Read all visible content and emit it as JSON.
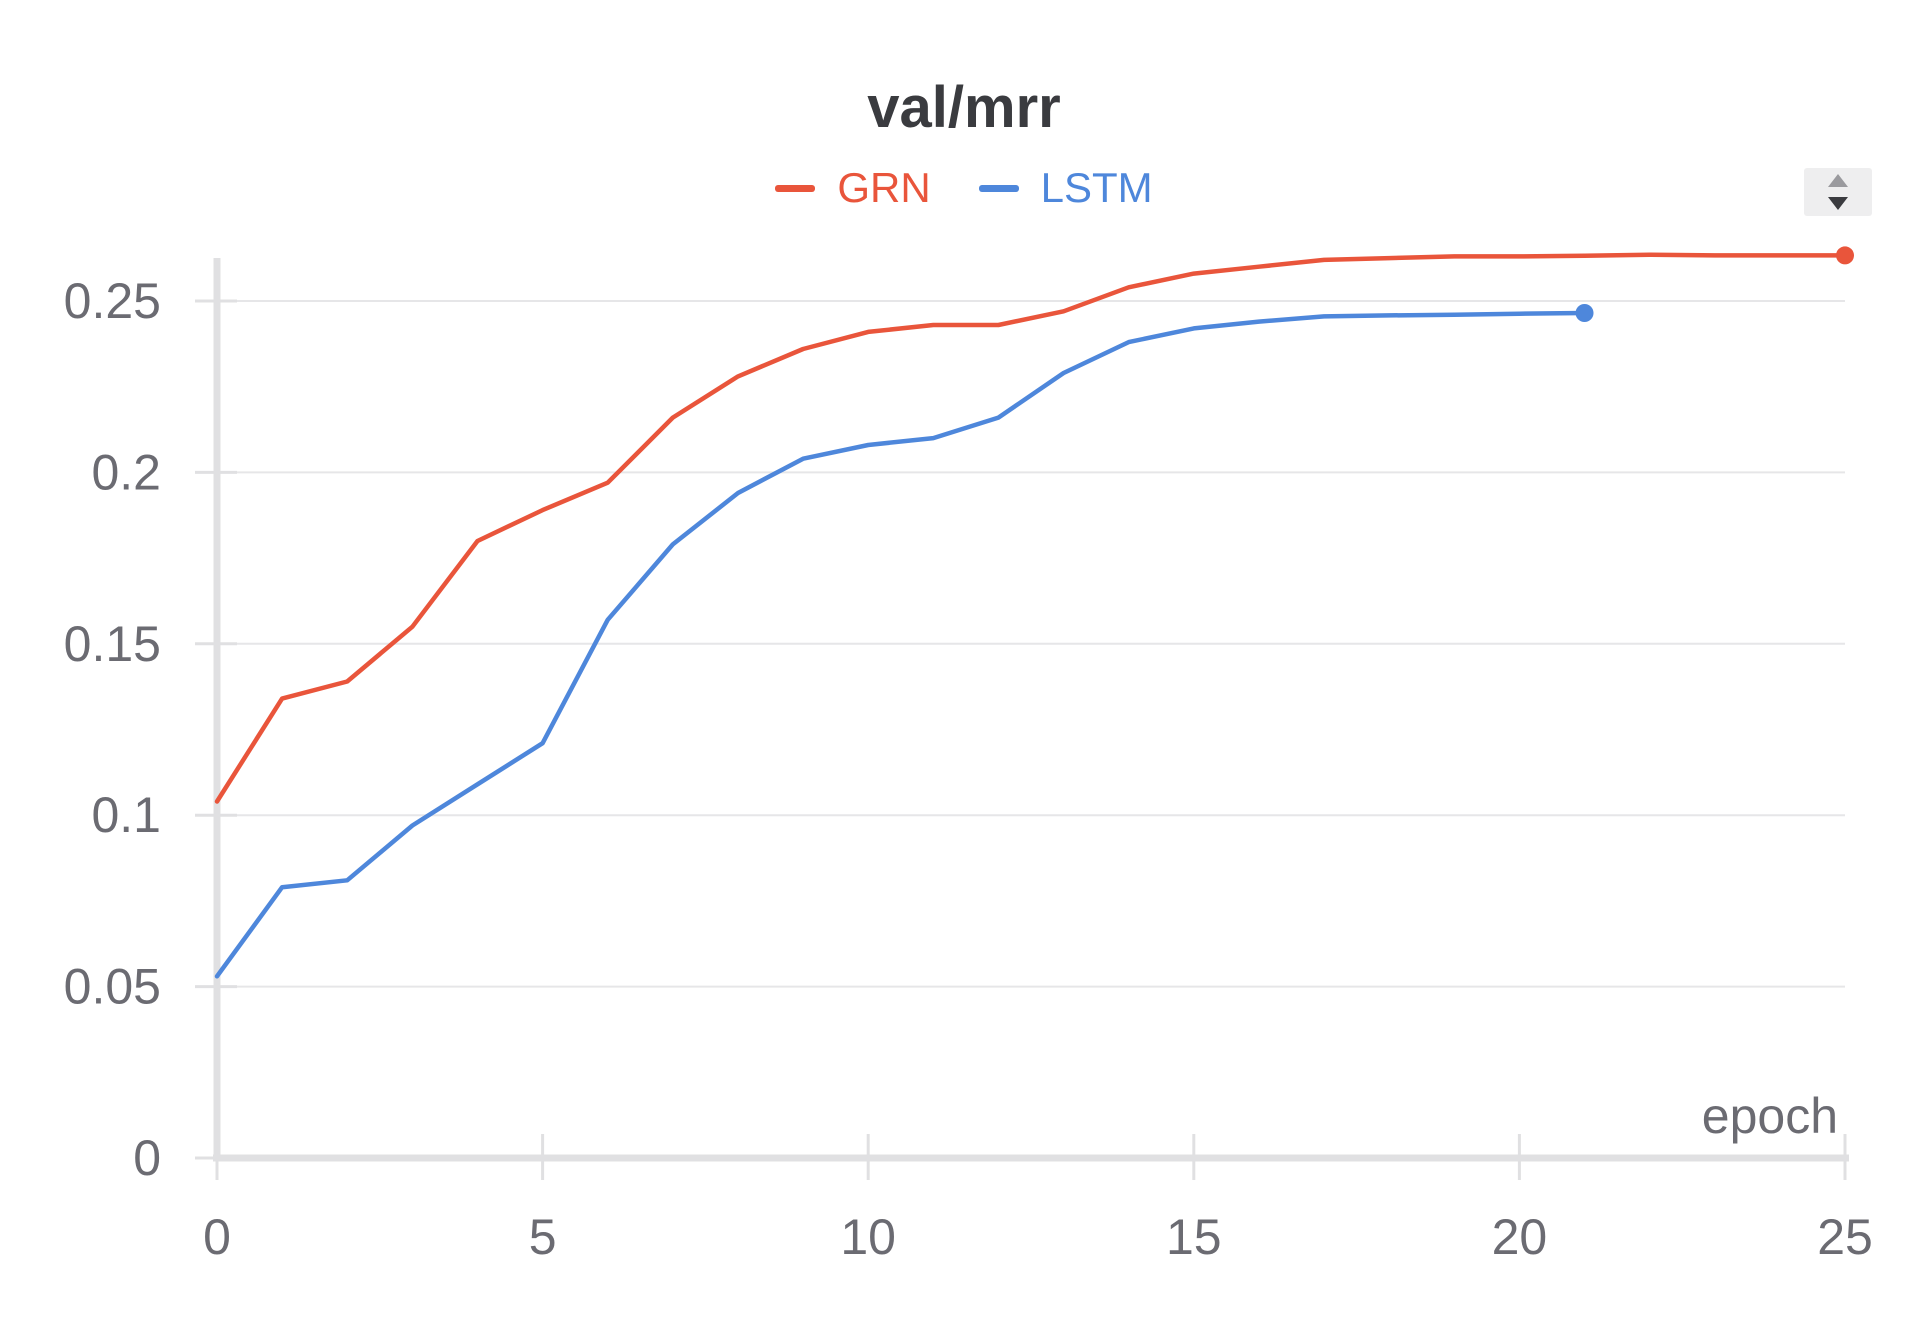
{
  "chart_data": {
    "type": "line",
    "title": "val/mrr",
    "xlabel": "epoch",
    "ylabel": "",
    "xlim": [
      0,
      25
    ],
    "ylim": [
      0,
      0.25
    ],
    "xticks": [
      0,
      5,
      10,
      15,
      20,
      25
    ],
    "yticks": [
      0,
      0.05,
      0.1,
      0.15,
      0.2,
      0.25
    ],
    "xtick_labels": [
      "0",
      "5",
      "10",
      "15",
      "20",
      "25"
    ],
    "ytick_labels": [
      "0",
      "0.05",
      "0.1",
      "0.15",
      "0.2",
      "0.25"
    ],
    "grid": "horizontal",
    "legend_position": "top-center",
    "series": [
      {
        "name": "GRN",
        "color": "#e9553b",
        "x": [
          0,
          1,
          2,
          3,
          4,
          5,
          6,
          7,
          8,
          9,
          10,
          11,
          12,
          13,
          14,
          15,
          16,
          17,
          18,
          19,
          20,
          21,
          22,
          23,
          24,
          25
        ],
        "values": [
          0.104,
          0.134,
          0.139,
          0.155,
          0.18,
          0.189,
          0.197,
          0.216,
          0.228,
          0.236,
          0.241,
          0.243,
          0.243,
          0.247,
          0.254,
          0.258,
          0.26,
          0.262,
          0.2625,
          0.263,
          0.263,
          0.2632,
          0.2635,
          0.2633,
          0.2633,
          0.2633
        ]
      },
      {
        "name": "LSTM",
        "color": "#4e87db",
        "x": [
          0,
          1,
          2,
          3,
          4,
          5,
          6,
          7,
          8,
          9,
          10,
          11,
          12,
          13,
          14,
          15,
          16,
          17,
          18,
          19,
          20,
          21
        ],
        "values": [
          0.053,
          0.079,
          0.081,
          0.097,
          0.109,
          0.121,
          0.157,
          0.179,
          0.194,
          0.204,
          0.208,
          0.21,
          0.216,
          0.229,
          0.238,
          0.242,
          0.244,
          0.2455,
          0.2458,
          0.246,
          0.2463,
          0.2465
        ]
      }
    ]
  },
  "ui": {
    "scroll_icon": "up-down-arrows-icon"
  }
}
